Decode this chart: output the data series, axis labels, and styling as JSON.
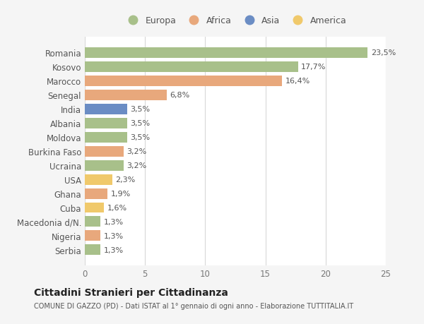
{
  "categories": [
    "Romania",
    "Kosovo",
    "Marocco",
    "Senegal",
    "India",
    "Albania",
    "Moldova",
    "Burkina Faso",
    "Ucraina",
    "USA",
    "Ghana",
    "Cuba",
    "Macedonia d/N.",
    "Nigeria",
    "Serbia"
  ],
  "values": [
    23.5,
    17.7,
    16.4,
    6.8,
    3.5,
    3.5,
    3.5,
    3.2,
    3.2,
    2.3,
    1.9,
    1.6,
    1.3,
    1.3,
    1.3
  ],
  "labels": [
    "23,5%",
    "17,7%",
    "16,4%",
    "6,8%",
    "3,5%",
    "3,5%",
    "3,5%",
    "3,2%",
    "3,2%",
    "2,3%",
    "1,9%",
    "1,6%",
    "1,3%",
    "1,3%",
    "1,3%"
  ],
  "continents": [
    "Europa",
    "Europa",
    "Africa",
    "Africa",
    "Asia",
    "Europa",
    "Europa",
    "Africa",
    "Europa",
    "America",
    "Africa",
    "America",
    "Europa",
    "Africa",
    "Europa"
  ],
  "colors": {
    "Europa": "#a8c08a",
    "Africa": "#e8a87c",
    "Asia": "#6b8dc4",
    "America": "#f0c96b"
  },
  "legend_order": [
    "Europa",
    "Africa",
    "Asia",
    "America"
  ],
  "title": "Cittadini Stranieri per Cittadinanza",
  "subtitle": "COMUNE DI GAZZO (PD) - Dati ISTAT al 1° gennaio di ogni anno - Elaborazione TUTTITALIA.IT",
  "xlim": [
    0,
    25
  ],
  "xticks": [
    0,
    5,
    10,
    15,
    20,
    25
  ],
  "background_color": "#f5f5f5",
  "bar_background": "#ffffff",
  "grid_color": "#d8d8d8"
}
